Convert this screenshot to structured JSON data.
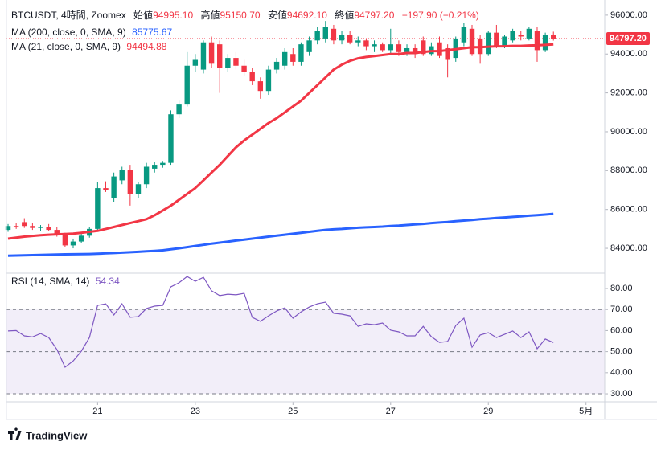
{
  "header": {
    "symbol": "BTCUSDT, 4時間, Zoomex",
    "ohlc": [
      {
        "label": "始値",
        "value": "94995.10"
      },
      {
        "label": "高値",
        "value": "95150.70"
      },
      {
        "label": "安値",
        "value": "94692.10"
      },
      {
        "label": "終値",
        "value": "94797.20"
      }
    ],
    "change": "−197.90 (−0.21%)"
  },
  "footer": {
    "brand": "TradingView"
  },
  "chart_data": [
    {
      "type": "candlestick",
      "up_color": "#089981",
      "down_color": "#f23645",
      "open": [
        84950,
        85150,
        85350,
        85150,
        85050,
        85100,
        84950,
        84700,
        84150,
        84350,
        84650,
        85000,
        87100,
        86600,
        87500,
        88050,
        86800,
        87300,
        88100,
        88300,
        88400,
        90900,
        91400,
        93400,
        93200,
        94600,
        94500,
        93300,
        93800,
        93400,
        93100,
        92600,
        92100,
        93200,
        93400,
        94000,
        93600,
        94100,
        94700,
        94800,
        95300,
        94700,
        95000,
        94600,
        94700,
        94400,
        94500,
        94200,
        94500,
        94100,
        94300,
        94700,
        94000,
        94600,
        94300,
        93800,
        94600,
        95300,
        94800,
        94000,
        95100,
        94400,
        94700,
        95000,
        94800,
        95200,
        94200,
        94995.1
      ],
      "high": [
        85250,
        85300,
        85550,
        85300,
        85200,
        85250,
        85100,
        84800,
        84500,
        84750,
        85100,
        87400,
        87450,
        87900,
        88200,
        88300,
        87400,
        88400,
        88450,
        88500,
        91100,
        91600,
        94100,
        94000,
        94700,
        94900,
        94700,
        94000,
        94100,
        93700,
        93300,
        92800,
        93400,
        93800,
        94300,
        94300,
        94600,
        94900,
        95400,
        95700,
        95500,
        95200,
        95200,
        94900,
        94800,
        94700,
        94600,
        95300,
        94700,
        94500,
        94500,
        94900,
        94600,
        94900,
        94500,
        94900,
        95600,
        95500,
        95000,
        95200,
        95500,
        95000,
        95300,
        95200,
        95400,
        95400,
        95100,
        95150.7
      ],
      "low": [
        84850,
        85000,
        85050,
        84950,
        84900,
        84900,
        84600,
        84050,
        84000,
        84250,
        84550,
        84950,
        86900,
        86400,
        87300,
        86200,
        86600,
        87100,
        87900,
        88150,
        88300,
        90700,
        91300,
        93100,
        93000,
        93300,
        92000,
        93100,
        93200,
        92900,
        92400,
        91700,
        91900,
        93000,
        93200,
        93400,
        93400,
        93900,
        94500,
        94600,
        94500,
        94500,
        94500,
        94400,
        94200,
        94100,
        94100,
        94000,
        93900,
        93900,
        93800,
        93900,
        93900,
        93800,
        92800,
        93600,
        94400,
        93900,
        93500,
        93900,
        94300,
        94300,
        94600,
        94700,
        94700,
        93600,
        94100,
        94692.1
      ],
      "close": [
        85150,
        85100,
        85150,
        85050,
        85100,
        84950,
        84700,
        84150,
        84350,
        84650,
        85000,
        87100,
        87000,
        87700,
        88050,
        86800,
        87300,
        88200,
        88300,
        88400,
        90900,
        91400,
        93400,
        93700,
        94600,
        93500,
        93300,
        93800,
        93400,
        93100,
        92600,
        92100,
        93200,
        93600,
        94100,
        93600,
        94500,
        94700,
        95200,
        95400,
        94700,
        95000,
        94600,
        94700,
        94400,
        94500,
        94200,
        94500,
        94100,
        94300,
        94000,
        94000,
        94400,
        93900,
        93700,
        94800,
        95400,
        94000,
        94000,
        95100,
        94400,
        94900,
        95200,
        94900,
        95300,
        94200,
        95000,
        94797.2
      ],
      "xlim": [
        -0.2,
        73.3
      ],
      "xticks": [
        {
          "value": 11,
          "label": "21"
        },
        {
          "value": 23,
          "label": "23"
        },
        {
          "value": 35,
          "label": "25"
        },
        {
          "value": 47,
          "label": "27"
        },
        {
          "value": 59,
          "label": "29"
        },
        {
          "value": 71,
          "label": "5月"
        }
      ],
      "ylim": [
        82720,
        96450
      ],
      "yticks": [
        {
          "value": 84000,
          "label": "84000.00"
        },
        {
          "value": 86000,
          "label": "86000.00"
        },
        {
          "value": 88000,
          "label": "88000.00"
        },
        {
          "value": 90000,
          "label": "90000.00"
        },
        {
          "value": 92000,
          "label": "92000.00"
        },
        {
          "value": 94000,
          "label": "94000.00"
        },
        {
          "value": 96000,
          "label": "96000.00"
        }
      ],
      "last_price": {
        "value": 94797.2,
        "label": "94797.20",
        "color": "#f23645"
      },
      "series": [
        {
          "name": "MA (200, close, 0, SMA, 9)",
          "value_label": "85775.67",
          "color": "#2962ff",
          "values": [
            83620,
            83630,
            83640,
            83650,
            83660,
            83670,
            83680,
            83690,
            83695,
            83700,
            83710,
            83720,
            83740,
            83760,
            83780,
            83800,
            83820,
            83850,
            83870,
            83900,
            83950,
            84000,
            84060,
            84120,
            84180,
            84240,
            84290,
            84340,
            84400,
            84450,
            84500,
            84550,
            84600,
            84650,
            84700,
            84750,
            84800,
            84850,
            84900,
            84950,
            84980,
            85000,
            85030,
            85060,
            85080,
            85100,
            85120,
            85150,
            85170,
            85200,
            85230,
            85260,
            85300,
            85330,
            85360,
            85400,
            85430,
            85460,
            85500,
            85530,
            85560,
            85590,
            85620,
            85650,
            85680,
            85710,
            85740,
            85775.67
          ]
        },
        {
          "name": "MA (21, close, 0, SMA, 9)",
          "value_label": "94494.88",
          "color": "#f23645",
          "values": [
            84500,
            84550,
            84600,
            84640,
            84670,
            84700,
            84720,
            84740,
            84760,
            84800,
            84850,
            84900,
            85000,
            85100,
            85200,
            85300,
            85400,
            85500,
            85700,
            85950,
            86200,
            86500,
            86800,
            87100,
            87500,
            87900,
            88300,
            88750,
            89200,
            89550,
            89850,
            90150,
            90450,
            90700,
            91000,
            91300,
            91600,
            92000,
            92400,
            92800,
            93200,
            93450,
            93650,
            93780,
            93850,
            93900,
            93950,
            94000,
            94000,
            94050,
            94050,
            94100,
            94150,
            94150,
            94200,
            94250,
            94300,
            94350,
            94350,
            94380,
            94400,
            94400,
            94420,
            94420,
            94440,
            94450,
            94470,
            94494.88
          ]
        }
      ]
    },
    {
      "type": "line",
      "xlim": [
        -0.2,
        73.3
      ],
      "ylim": [
        26.2,
        87.25
      ],
      "yticks": [
        {
          "value": 30,
          "label": "30.00"
        },
        {
          "value": 40,
          "label": "40.00"
        },
        {
          "value": 50,
          "label": "50.00"
        },
        {
          "value": 60,
          "label": "60.00"
        },
        {
          "value": 70,
          "label": "70.00"
        },
        {
          "value": 80,
          "label": "80.00"
        }
      ],
      "band": [
        30,
        70
      ],
      "band_color": "#7e57c2",
      "levels": [
        70,
        50,
        30
      ],
      "series": [
        {
          "name": "RSI (14, SMA, 14)",
          "value_label": "54.34",
          "color": "#7e57c2",
          "values": [
            59.8,
            60,
            57.5,
            57,
            58.6,
            56.7,
            51,
            42.6,
            45.6,
            50.2,
            56.7,
            72,
            72.7,
            67.4,
            72.7,
            66.3,
            66.6,
            70.5,
            71.6,
            72,
            80.8,
            82.7,
            85.7,
            83.4,
            85.3,
            78.9,
            76.6,
            77.3,
            77,
            77.7,
            66.3,
            64.4,
            67,
            69.3,
            70.8,
            65.9,
            68.9,
            71.2,
            72.7,
            73.5,
            68.2,
            67.8,
            67,
            62,
            63.2,
            62.8,
            63.6,
            60.2,
            59.4,
            57.5,
            57.5,
            62,
            57.1,
            54.4,
            54.8,
            62.4,
            65.9,
            52.1,
            57.9,
            59,
            56.7,
            58.2,
            59.8,
            56.7,
            59.4,
            51.4,
            56,
            54.34
          ]
        }
      ]
    }
  ]
}
